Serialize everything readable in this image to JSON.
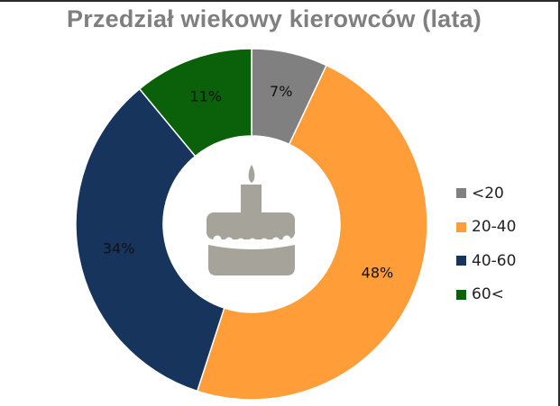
{
  "chart_data": {
    "type": "pie",
    "title": "Przedział wiekowy kierowców (lata)",
    "categories": [
      "<20",
      "20-40",
      "40-60",
      "60<"
    ],
    "values": [
      7,
      48,
      34,
      11
    ],
    "value_labels": [
      "7%",
      "48%",
      "34%",
      "11%"
    ],
    "colors": [
      "#808080",
      "#FF9D39",
      "#17355C",
      "#0A610A"
    ],
    "legend_position": "right",
    "center_icon": "birthday-cake-icon"
  }
}
